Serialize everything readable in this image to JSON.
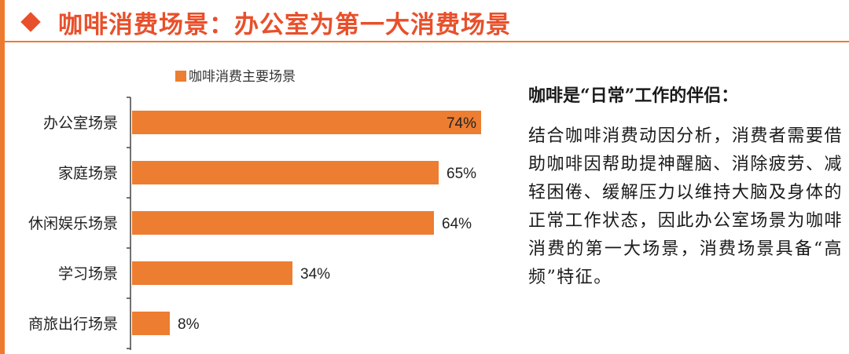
{
  "header": {
    "title": "咖啡消费场景：办公室为第一大消费场景"
  },
  "colors": {
    "accent": "#ee7a2f",
    "title_red": "#e8502b",
    "bar": "#ed7d31"
  },
  "icons": {
    "bullet": "diamond-icon"
  },
  "side_panel": {
    "title": "咖啡是“日常”工作的伴侣：",
    "body": "结合咖啡消费动因分析，消费者需要借助咖啡因帮助提神醒脑、消除疲劳、减轻困倦、缓解压力以维持大脑及身体的正常工作状态，因此办公室场景为咖啡消费的第一大场景，消费场景具备“高频”特征。"
  },
  "chart_data": {
    "type": "bar",
    "orientation": "horizontal",
    "categories": [
      "办公室场景",
      "家庭场景",
      "休闲娱乐场景",
      "学习场景",
      "商旅出行场景"
    ],
    "series": [
      {
        "name": "咖啡消费主要场景",
        "values": [
          74,
          65,
          64,
          34,
          8
        ],
        "labels": [
          "74%",
          "65%",
          "64%",
          "34%",
          "8%"
        ]
      }
    ],
    "xlim": [
      0,
      100
    ],
    "grid": false,
    "legend": "top"
  }
}
